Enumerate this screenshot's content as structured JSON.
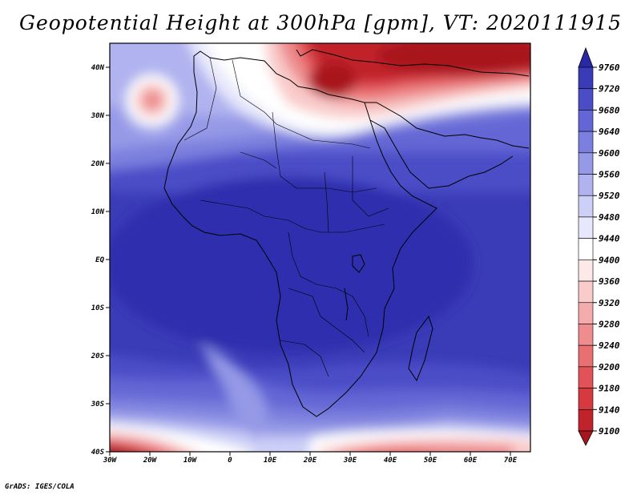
{
  "title": "Geopotential Height at 300hPa [gpm], VT: 2020111915",
  "footer": "GrADS: IGES/COLA",
  "map": {
    "projection": "lat-lon",
    "lon_range": [
      -30,
      75
    ],
    "lat_range": [
      -40,
      45
    ],
    "lat_ticks": [
      {
        "label": "40N",
        "lat": 40
      },
      {
        "label": "30N",
        "lat": 30
      },
      {
        "label": "20N",
        "lat": 20
      },
      {
        "label": "10N",
        "lat": 10
      },
      {
        "label": "EQ",
        "lat": 0
      },
      {
        "label": "10S",
        "lat": -10
      },
      {
        "label": "20S",
        "lat": -20
      },
      {
        "label": "30S",
        "lat": -30
      },
      {
        "label": "40S",
        "lat": -40
      }
    ],
    "lon_ticks": [
      {
        "label": "30W",
        "lon": -30
      },
      {
        "label": "20W",
        "lon": -20
      },
      {
        "label": "10W",
        "lon": -10
      },
      {
        "label": "0",
        "lon": 0
      },
      {
        "label": "10E",
        "lon": 10
      },
      {
        "label": "20E",
        "lon": 20
      },
      {
        "label": "30E",
        "lon": 30
      },
      {
        "label": "40E",
        "lon": 40
      },
      {
        "label": "50E",
        "lon": 50
      },
      {
        "label": "60E",
        "lon": 60
      },
      {
        "label": "70E",
        "lon": 70
      }
    ]
  },
  "colorbar": {
    "levels": [
      9100,
      9140,
      9180,
      9200,
      9240,
      9280,
      9320,
      9360,
      9400,
      9440,
      9480,
      9520,
      9560,
      9600,
      9640,
      9680,
      9720,
      9760
    ],
    "colors": [
      "#a8151e",
      "#c1232b",
      "#d63a3f",
      "#e25358",
      "#e86f72",
      "#ee8c8e",
      "#f4abab",
      "#f9cbca",
      "#fde9e8",
      "#ffffff",
      "#e7e8fb",
      "#cccff6",
      "#b0b3ef",
      "#9599e6",
      "#7b7fdd",
      "#6366d4",
      "#4b4dc7",
      "#3a3bb7",
      "#2a28a6"
    ]
  },
  "chart_data": {
    "type": "heatmap",
    "title": "Geopotential Height at 300hPa [gpm], VT: 2020111915",
    "variable": "geopotential height",
    "level": "300hPa",
    "units": "gpm",
    "valid_time": "2020111915",
    "domain": {
      "lon": [
        -30,
        75
      ],
      "lat": [
        -40,
        45
      ]
    },
    "colorbar_ticks": [
      9100,
      9140,
      9180,
      9200,
      9240,
      9280,
      9320,
      9360,
      9400,
      9440,
      9480,
      9520,
      9560,
      9600,
      9640,
      9680,
      9720,
      9760
    ],
    "features": [
      {
        "label": "",
        "lon": 50,
        "lat": 42,
        "value_range": [
          9100,
          9200
        ]
      },
      {
        "label": "",
        "lon": 23,
        "lat": 37,
        "value_range": [
          9100,
          9180
        ]
      },
      {
        "label": "",
        "lon": -21,
        "lat": 34,
        "value_range": [
          9320,
          9400
        ]
      },
      {
        "label": "",
        "lon": -23,
        "lat": -39,
        "value_range": [
          9100,
          9180
        ]
      },
      {
        "label": "",
        "lon": 40,
        "lat": -39,
        "value_range": [
          9240,
          9320
        ]
      },
      {
        "label": "",
        "lon": 5,
        "lat": 5,
        "value_range": [
          9680,
          9720
        ]
      }
    ]
  }
}
